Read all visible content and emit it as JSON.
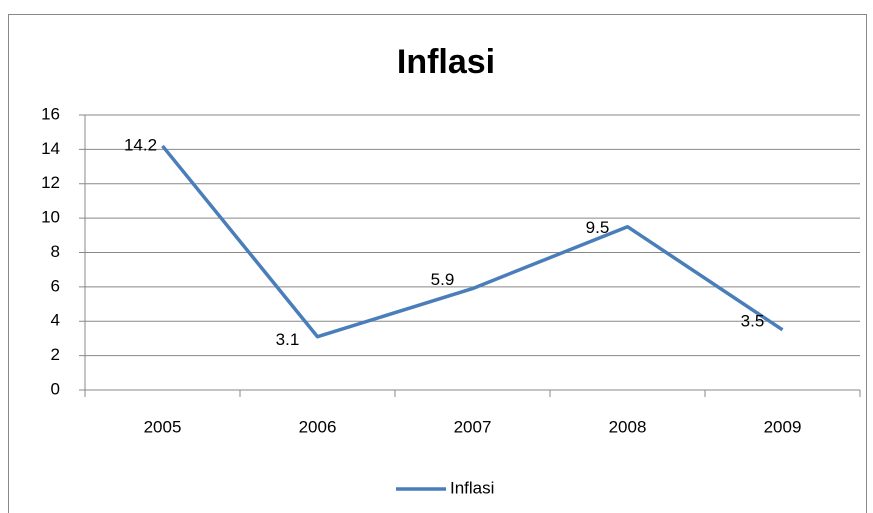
{
  "chart_data": {
    "type": "line",
    "title": "Inflasi",
    "categories": [
      "2005",
      "2006",
      "2007",
      "2008",
      "2009"
    ],
    "series": [
      {
        "name": "Inflasi",
        "color": "#4a7ebb",
        "values": [
          14.2,
          3.1,
          5.9,
          9.5,
          3.5
        ]
      }
    ],
    "ylim": [
      0,
      16
    ],
    "yticks": [
      0,
      2,
      4,
      6,
      8,
      10,
      12,
      14,
      16
    ],
    "grid": true,
    "legend": "bottom"
  }
}
